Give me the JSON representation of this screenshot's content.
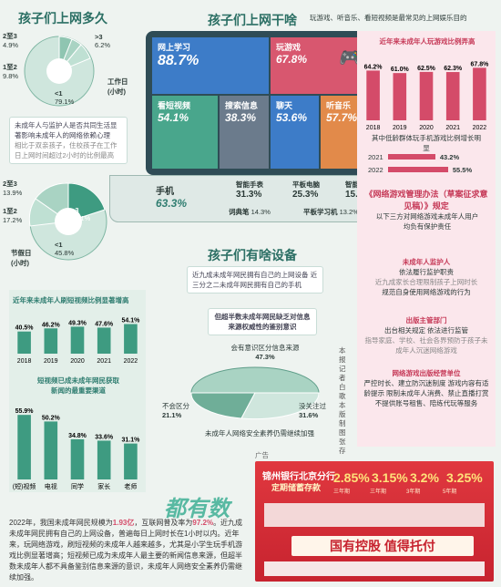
{
  "top": {
    "how_long_title": "孩子们上网多久",
    "what_title": "孩子们上网干啥",
    "what_subtitle": "玩游戏、听音乐、看短视频是最常见的上网娱乐目的",
    "workday_label": "工作日\n(小时)",
    "holiday_label": "节假日\n(小时)",
    "pie_workday": [
      {
        "label": ">3",
        "value": "6.2%"
      },
      {
        "label": "2至3",
        "value": "4.9%"
      },
      {
        "label": "1至2",
        "value": "9.8%"
      },
      {
        "label": "<1",
        "value": "79.1%"
      }
    ],
    "pie_holiday": [
      {
        "label": "2至3",
        "value": "13.9%"
      },
      {
        "label": "1至2",
        "value": "17.2%"
      },
      {
        "label": ">3",
        "value": "23.1%"
      },
      {
        "label": "<1",
        "value": "45.8%"
      }
    ],
    "note1": "未成年人与监护人是否共同生活显著影响未成年人的网络依赖心理",
    "note2": "相比于双亲孩子，住校孩子在工作日上网时间超过2小时的比例最高"
  },
  "screen_tiles": [
    {
      "name": "网上学习",
      "value": "88.7%"
    },
    {
      "name": "玩游戏",
      "value": "67.8%"
    },
    {
      "name": "看短视频",
      "value": "54.1%"
    },
    {
      "name": "搜索信息",
      "value": "38.3%"
    },
    {
      "name": "聊天",
      "value": "53.6%"
    },
    {
      "name": "听音乐",
      "value": "57.7%"
    }
  ],
  "keyboard": {
    "phone": {
      "name": "手机",
      "value": "63.3%"
    },
    "watch": {
      "name": "智能手表",
      "value": "31.3%"
    },
    "tablet": {
      "name": "平板电脑",
      "value": "25.3%"
    },
    "lamp": {
      "name": "智能台灯",
      "value": "15.7%"
    },
    "pen": {
      "name": "词典笔",
      "value": "14.3%"
    },
    "study_tablet": {
      "name": "平板学习机",
      "value": "13.2%"
    }
  },
  "right_panel": {
    "title": "近年来未成年人玩游戏比例弄高",
    "years": [
      "2018",
      "2019",
      "2020",
      "2021",
      "2022"
    ],
    "values": [
      "64.2%",
      "61.0%",
      "62.5%",
      "62.3%",
      "67.8%"
    ],
    "low_income_title": "其中低龄群体玩手机游戏比例增长明显",
    "low_income": [
      {
        "year": "2021",
        "value": "43.2%"
      },
      {
        "year": "2022",
        "value": "55.5%"
      }
    ],
    "law_title": "《网络游戏管理办法（草案征求意见稿）》规定",
    "law_text": "以下三方对网络游戏未成年人用户均负有保护责任",
    "guardian_title": "未成年人监护人",
    "guardian_text": "依法履行监护职责",
    "guardian_sub": "近九成家长合理限制孩子上网时长",
    "guardian_sub2": "规范自身使用网络游戏的行为",
    "publisher_title": "出版主管部门",
    "publisher_text": "出台相关规定 依法进行监管",
    "publisher_sub": "指导家庭、学校、社会各界预防于孩子未成年人沉迷网络游戏",
    "company_title": "网络游戏出版经营单位",
    "company_text": "严控时长、建立防沉迷制度 游戏内容有适龄提示 限制未成年人消费、禁止直播打赏 不提供账号租售、陪练代玩等服务"
  },
  "devices": {
    "title": "孩子们有啥设备",
    "text": "近九成未成年网民拥有自己的上网设备 近三分之二未成年网民拥有自己的手机"
  },
  "skills": {
    "title": "近年来未成年人刷短视频比例显著增高",
    "years": [
      "2018",
      "2019",
      "2020",
      "2021",
      "2022"
    ],
    "values": [
      "40.5%",
      "46.2%",
      "49.3%",
      "47.6%",
      "54.1%"
    ],
    "source_title": "短视频已成未成年网民获取新闻的最重要渠道",
    "sources": [
      {
        "name": "(短)视频",
        "value": "55.9%"
      },
      {
        "name": "电视",
        "value": "50.2%"
      },
      {
        "name": "同学",
        "value": "34.8%"
      },
      {
        "name": "家长",
        "value": "33.6%"
      },
      {
        "name": "老师",
        "value": "31.1%"
      }
    ]
  },
  "security": {
    "title": "但超半数未成年网民缺乏对信息来源权威性的鉴别意识",
    "has_label": "会有意识区分信息来源",
    "has_value": "47.3%",
    "no_label": "不会区分",
    "no_value": "21.1%",
    "never_label": "没关注过",
    "never_value": "31.6%",
    "caption": "未成年人网络安全素养仍需继续加强",
    "byline": "本报记者 白歌 本版制图 张存"
  },
  "summary": {
    "logo": "都有数",
    "text_parts": [
      "2022年，我国未成年网民规模为",
      "1.93亿",
      "，互联网普及率为",
      "97.2%",
      "。近九成未成年网民拥有自己的上网设备，普遍每日上网时长在1小时以内。近年来，玩网络游戏，刷短视频的未成年人越来越多，尤其是小学生玩手机游戏比例显著增高；短视频已成为未成年人最主要的新闻信息来源，但超半数未成年人都不具备鉴别信息来源的意识，未成年人网络安全素养仍需继续加强。"
    ]
  },
  "ad": {
    "label": "广告",
    "bank": "锦州银行北京分行",
    "product": "定期储蓄存款",
    "rates": [
      "2.85%",
      "3.15%",
      "3.2%",
      "3.25%"
    ],
    "rate_terms": [
      "三年期",
      "三年期",
      "3年期",
      "5年期"
    ],
    "slogan": "国有控股 值得托付"
  },
  "colors": {
    "teal": "#2f7d70",
    "tile_blue": "#3d7cc8",
    "tile_red": "#d8576f",
    "tile_green": "#49a68c",
    "tile_gray": "#6b7b8c",
    "tile_orange": "#e28a4a"
  }
}
